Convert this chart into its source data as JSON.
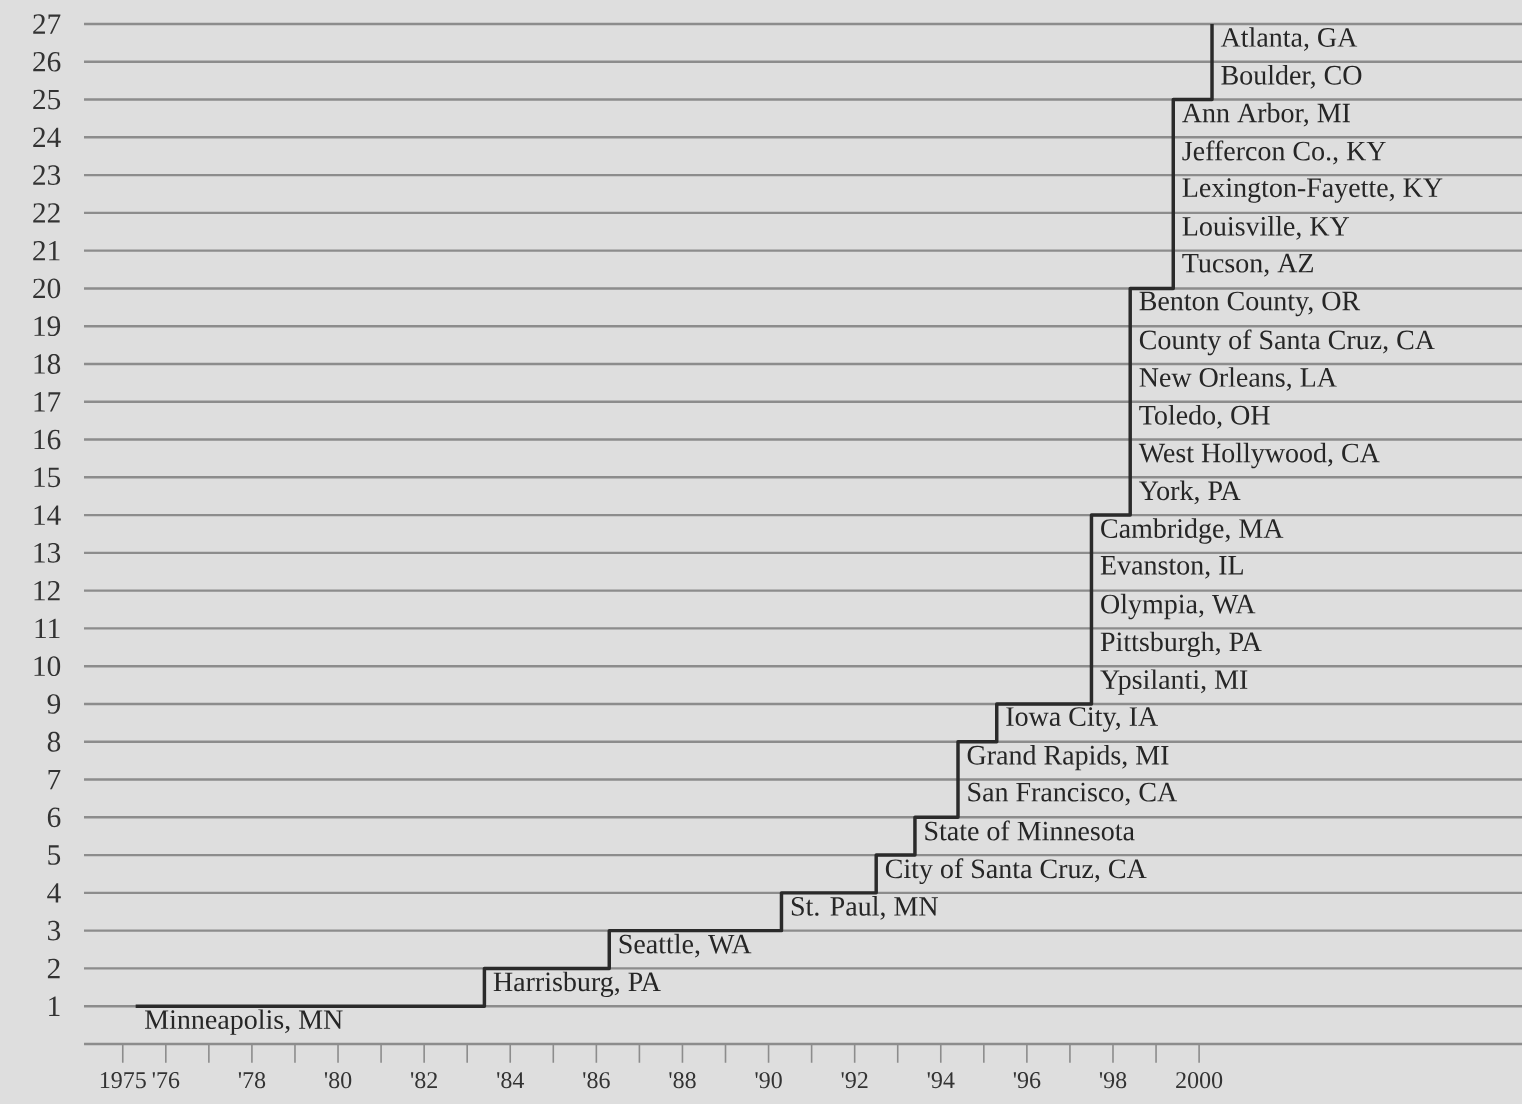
{
  "chart_data": {
    "type": "step",
    "color": "#2a2a2a",
    "grid": "y",
    "x": [
      1975.3,
      1983.4,
      1986.3,
      1990.3,
      1992.5,
      1993.4,
      1994.4,
      1994.4,
      1995.3,
      1997.5,
      1997.5,
      1997.5,
      1997.5,
      1997.5,
      1998.4,
      1998.4,
      1998.4,
      1998.4,
      1998.4,
      1998.4,
      1999.4,
      1999.4,
      1999.4,
      1999.4,
      1999.4,
      2000.3,
      2000.3
    ],
    "values": [
      1,
      2,
      3,
      4,
      5,
      6,
      7,
      8,
      9,
      10,
      11,
      12,
      13,
      14,
      15,
      16,
      17,
      18,
      19,
      20,
      21,
      22,
      23,
      24,
      25,
      26,
      27
    ],
    "xlim": [
      1974.1,
      2007.5
    ],
    "ylim": [
      0,
      27
    ],
    "xticks": [
      1975,
      {
        "value": 1976,
        "label": "'76"
      },
      {
        "value": 1977,
        "label": null
      },
      {
        "value": 1978,
        "label": "'78"
      },
      {
        "value": 1979,
        "label": null
      },
      {
        "value": 1980,
        "label": "'80"
      },
      {
        "value": 1981,
        "label": null
      },
      {
        "value": 1982,
        "label": "'82"
      },
      {
        "value": 1983,
        "label": null
      },
      {
        "value": 1984,
        "label": "'84"
      },
      {
        "value": 1985,
        "label": null
      },
      {
        "value": 1986,
        "label": "'86"
      },
      {
        "value": 1987,
        "label": null
      },
      {
        "value": 1988,
        "label": "'88"
      },
      {
        "value": 1989,
        "label": null
      },
      {
        "value": 1990,
        "label": "'90"
      },
      {
        "value": 1991,
        "label": null
      },
      {
        "value": 1992,
        "label": "'92"
      },
      {
        "value": 1993,
        "label": null
      },
      {
        "value": 1994,
        "label": "'94"
      },
      {
        "value": 1995,
        "label": null
      },
      {
        "value": 1996,
        "label": "'96"
      },
      {
        "value": 1997,
        "label": null
      },
      {
        "value": 1998,
        "label": "'98"
      },
      {
        "value": 1999,
        "label": null
      },
      {
        "value": 2000,
        "label": "2000"
      }
    ],
    "yticks": [
      1,
      2,
      3,
      4,
      5,
      6,
      7,
      8,
      9,
      10,
      11,
      12,
      13,
      14,
      15,
      16,
      17,
      18,
      19,
      20,
      21,
      22,
      23,
      24,
      25,
      26,
      27
    ],
    "annotations": [
      {
        "text": "Minneapolis, MN",
        "x": 1975.3,
        "y": 1
      },
      {
        "text": "Harrisburg, PA",
        "x": 1983.4,
        "y": 2
      },
      {
        "text": "Seattle, WA",
        "x": 1986.3,
        "y": 3
      },
      {
        "text": "St. Paul, MN",
        "x": 1990.3,
        "y": 4
      },
      {
        "text": "City of Santa Cruz, CA",
        "x": 1992.5,
        "y": 5
      },
      {
        "text": "State of Minnesota",
        "x": 1993.4,
        "y": 6
      },
      {
        "text": "San Francisco, CA",
        "x": 1994.4,
        "y": 7
      },
      {
        "text": "Grand Rapids, MI",
        "x": 1994.4,
        "y": 8
      },
      {
        "text": "Iowa City, IA",
        "x": 1995.3,
        "y": 9
      },
      {
        "text": "Ypsilanti, MI",
        "x": 1997.5,
        "y": 10
      },
      {
        "text": "Pittsburgh, PA",
        "x": 1997.5,
        "y": 11
      },
      {
        "text": "Olympia, WA",
        "x": 1997.5,
        "y": 12
      },
      {
        "text": "Evanston, IL",
        "x": 1997.5,
        "y": 13
      },
      {
        "text": "Cambridge, MA",
        "x": 1997.5,
        "y": 14
      },
      {
        "text": "York, PA",
        "x": 1998.4,
        "y": 15
      },
      {
        "text": "West Hollywood, CA",
        "x": 1998.4,
        "y": 16
      },
      {
        "text": "Toledo, OH",
        "x": 1998.4,
        "y": 17
      },
      {
        "text": "New Orleans, LA",
        "x": 1998.4,
        "y": 18
      },
      {
        "text": "County of Santa Cruz, CA",
        "x": 1998.4,
        "y": 19
      },
      {
        "text": "Benton County, OR",
        "x": 1998.4,
        "y": 20
      },
      {
        "text": "Tucson, AZ",
        "x": 1999.4,
        "y": 21
      },
      {
        "text": "Louisville, KY",
        "x": 1999.4,
        "y": 22
      },
      {
        "text": "Lexington-Fayette, KY",
        "x": 1999.4,
        "y": 23
      },
      {
        "text": "Jeffercon Co., KY",
        "x": 1999.4,
        "y": 24
      },
      {
        "text": "Ann Arbor, MI",
        "x": 1999.4,
        "y": 25
      },
      {
        "text": "Boulder, CO",
        "x": 2000.3,
        "y": 26
      },
      {
        "text": "Atlanta, GA",
        "x": 2000.3,
        "y": 27
      }
    ]
  }
}
